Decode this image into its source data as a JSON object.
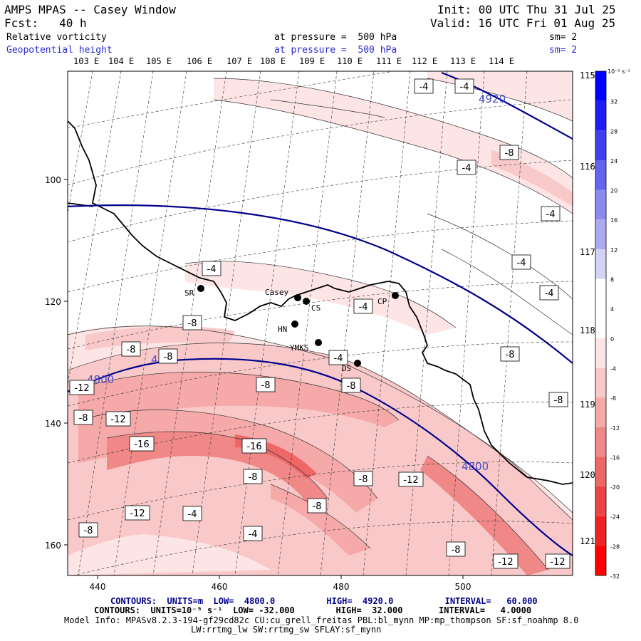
{
  "header": {
    "title": "AMPS MPAS -- Casey Window",
    "init": "Init: 00 UTC Thu 31 Jul 25",
    "fcst": "Fcst:   40 h",
    "valid": "Valid: 16 UTC Fri 01 Aug 25",
    "field1_name": "Relative vorticity",
    "field1_level": "at pressure =  500 hPa",
    "field1_sm": "sm= 2",
    "field2_name": "Geopotential height",
    "field2_level": "at pressure =  500 hPa",
    "field2_sm": "sm= 2"
  },
  "longitude_labels": [
    "103 E",
    "104 E",
    "105 E",
    "106 E",
    "107 E",
    "108 E",
    "109 E",
    "110 E",
    "111 E",
    "112 E",
    "113 E",
    "114 E"
  ],
  "right_lon_labels": [
    "115 E",
    "116 E",
    "117 E",
    "118 E",
    "119 E",
    "120 E",
    "121 E"
  ],
  "y_axis_ticks": [
    "100",
    "120",
    "140",
    "160"
  ],
  "x_axis_ticks": [
    "440",
    "460",
    "480",
    "500"
  ],
  "stations": [
    "SR",
    "Casey",
    "CS",
    "HN",
    "YMKS",
    "DS",
    "CP"
  ],
  "height_contour_labels": [
    "4920",
    "4800",
    "4800",
    "4800"
  ],
  "vorticity_labels": [
    "-4",
    "-4",
    "-8",
    "-4",
    "-4",
    "-4",
    "-4",
    "-4",
    "-4",
    "-8",
    "-8",
    "-4",
    "-8",
    "-8",
    "-8",
    "-12",
    "-8",
    "-8",
    "-12",
    "-16",
    "-16",
    "-8",
    "-8",
    "-12",
    "-12",
    "-4",
    "-8",
    "-8",
    "-4",
    "-8",
    "-12",
    "-12",
    "-8"
  ],
  "colorbar": {
    "units": "10⁻⁵ s⁻¹",
    "ticks": [
      "32",
      "28",
      "24",
      "20",
      "16",
      "12",
      "8",
      "4",
      "0",
      "-4",
      "-8",
      "-12",
      "-16",
      "-20",
      "-24",
      "-28",
      "-32"
    ],
    "colors": [
      "#0000ff",
      "#1e1ef4",
      "#3f3ff0",
      "#6464f0",
      "#8a8aef",
      "#ababf2",
      "#d3d3f8",
      "#ffffff",
      "#ffffff",
      "#fde5e5",
      "#f9c9c9",
      "#f5a9a9",
      "#f08888",
      "#ee6666",
      "#ec4444",
      "#ee2222",
      "#ff0000"
    ]
  },
  "footer": {
    "line1": "CONTOURS:  UNITS=m  LOW=  4800.0          HIGH=  4920.0          INTERVAL=   60.000",
    "line2": "CONTOURS:  UNITS=10⁻⁵ s⁻¹  LOW= -32.000        HIGH=  32.000       INTERVAL=   4.0000",
    "line3": "Model Info: MPASv8.2.3-194-gf29cd82c CU:cu_grell_freitas PBL:bl_mynn MP:mp_thompson SF:sf_noahmp 8.0",
    "line4": "LW:rrtmg_lw SW:rrtmg_sw SFLAY:sf_mynn"
  }
}
